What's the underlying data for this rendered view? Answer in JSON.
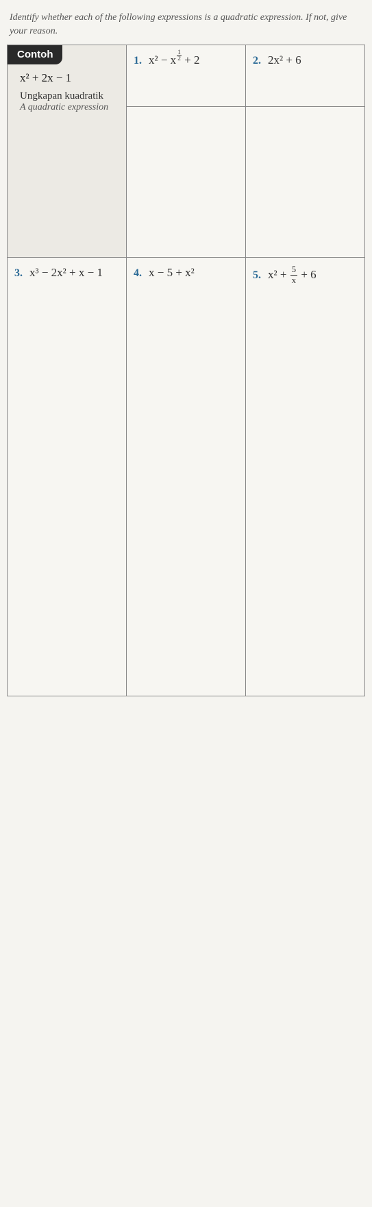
{
  "instruction": "Identify whether each of the following expressions is a quadratic expression. If not, give your reason.",
  "contoh": {
    "badge": "Contoh",
    "expression": "x² + 2x − 1",
    "label_ms": "Ungkapan kuadratik",
    "label_en": "A quadratic expression"
  },
  "items": {
    "q1": {
      "num": "1.",
      "expr_prefix": "x² − x",
      "exp_frac_num": "1",
      "exp_frac_den": "2",
      "expr_suffix": " + 2"
    },
    "q2": {
      "num": "2.",
      "expr": "2x² + 6"
    },
    "q3": {
      "num": "3.",
      "expr": "x³ − 2x² + x − 1"
    },
    "q4": {
      "num": "4.",
      "expr": "x − 5 + x²"
    },
    "q5": {
      "num": "5.",
      "expr_prefix": "x² + ",
      "frac_num": "5",
      "frac_den": "x",
      "expr_suffix": " + 6"
    }
  }
}
